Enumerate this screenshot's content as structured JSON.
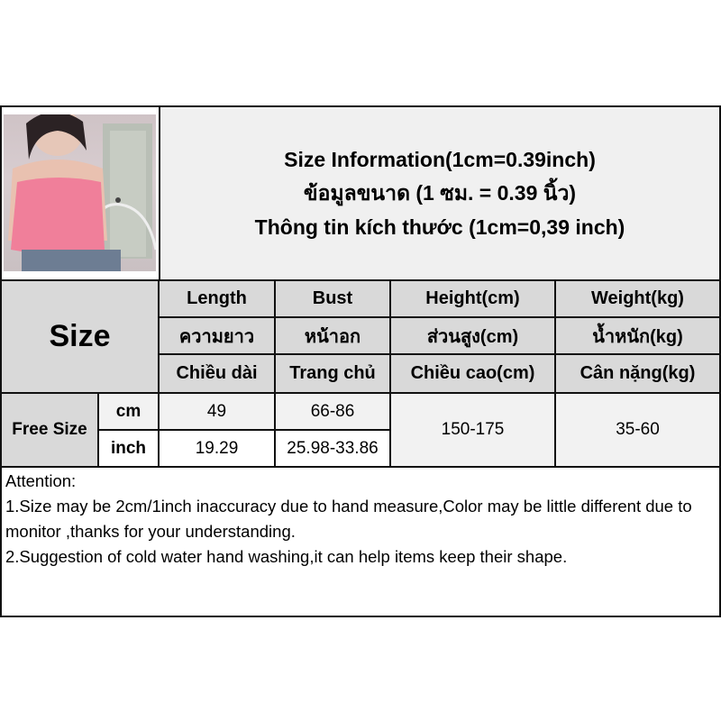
{
  "title": {
    "line1": "Size Information(1cm=0.39inch)",
    "line2": "ข้อมูลขนาด (1 ซม. = 0.39 นิ้ว)",
    "line3": "Thông tin kích thước (1cm=0,39 inch)"
  },
  "table": {
    "size_label": "Size",
    "columns": [
      {
        "en": "Length",
        "th": "ความยาว",
        "vi": "Chiều dài"
      },
      {
        "en": "Bust",
        "th": "หน้าอก",
        "vi": "Trang chủ"
      },
      {
        "en": "Height(cm)",
        "th": "ส่วนสูง(cm)",
        "vi": "Chiều cao(cm)"
      },
      {
        "en": "Weight(kg)",
        "th": "น้ำหนัก(kg)",
        "vi": "Cân nặng(kg)"
      }
    ],
    "row_label": "Free Size",
    "units": [
      "cm",
      "inch"
    ],
    "cm": {
      "length": "49",
      "bust": "66-86"
    },
    "inch": {
      "length": "19.29",
      "bust": "25.98-33.86"
    },
    "height": "150-175",
    "weight": "35-60"
  },
  "attention": {
    "heading": "Attention:",
    "line1": "1.Size may be 2cm/1inch inaccuracy due to hand measure,Color may be little different due to monitor ,thanks for your understanding.",
    "line2": "2.Suggestion of cold water hand washing,it can help items keep their shape."
  },
  "colors": {
    "header_gray": "#d9d9d9",
    "light_gray": "#f2f2f2",
    "border": "#111111",
    "top_color": "#f07f9a"
  }
}
